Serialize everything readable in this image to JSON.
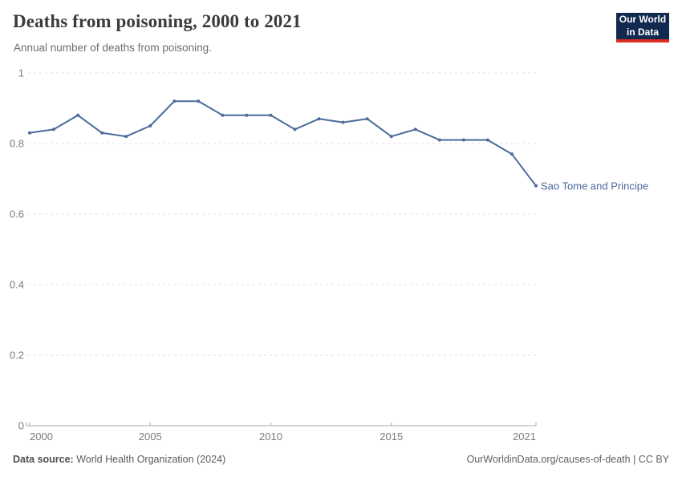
{
  "header": {
    "title": "Deaths from poisoning, 2000 to 2021",
    "subtitle": "Annual number of deaths from poisoning.",
    "logo": {
      "line1": "Our World",
      "line2": "in Data",
      "bg_color": "#12294f",
      "accent_color": "#dc2d22"
    }
  },
  "chart_data": {
    "type": "line",
    "title": "Deaths from poisoning, 2000 to 2021",
    "subtitle": "Annual number of deaths from poisoning.",
    "xlabel": "",
    "ylabel": "",
    "x": [
      2000,
      2001,
      2002,
      2003,
      2004,
      2005,
      2006,
      2007,
      2008,
      2009,
      2010,
      2011,
      2012,
      2013,
      2014,
      2015,
      2016,
      2017,
      2018,
      2019,
      2020,
      2021
    ],
    "series": [
      {
        "name": "Sao Tome and Principe",
        "color": "#4c6a9c",
        "values": [
          0.83,
          0.84,
          0.88,
          0.83,
          0.82,
          0.85,
          0.92,
          0.92,
          0.88,
          0.88,
          0.88,
          0.84,
          0.87,
          0.86,
          0.87,
          0.82,
          0.84,
          0.81,
          0.81,
          0.81,
          0.77,
          0.68
        ]
      }
    ],
    "ylim": [
      0,
      1
    ],
    "yticks": [
      0,
      0.2,
      0.4,
      0.6,
      0.8,
      1
    ],
    "ytick_labels": [
      "0",
      "0.2",
      "0.4",
      "0.6",
      "0.8",
      "1"
    ],
    "xticks": [
      2000,
      2005,
      2010,
      2015,
      2021
    ],
    "xtick_labels": [
      "2000",
      "2005",
      "2010",
      "2015",
      "2021"
    ],
    "grid": "horizontal dashed",
    "legend_position": "end-of-line label"
  },
  "footer": {
    "source_label": "Data source:",
    "source_value": " World Health Organization (2024)",
    "rights": "OurWorldinData.org/causes-of-death | CC BY"
  }
}
